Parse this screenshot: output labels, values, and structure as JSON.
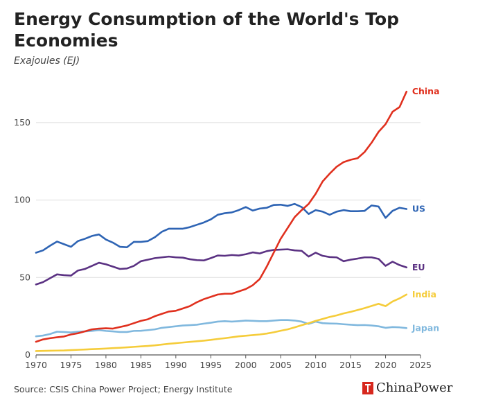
{
  "title": "Energy Consumption of the World's Top Economies",
  "subtitle": "Exajoules (EJ)",
  "source": "Source: CSIS China Power Project; Energy Institute",
  "brand": "ChinaPower",
  "chart_data": {
    "type": "line",
    "title": "Energy Consumption of the World's Top Economies",
    "ylabel": "Exajoules (EJ)",
    "xlim": [
      1970,
      2025
    ],
    "ylim": [
      0,
      175
    ],
    "xticks": [
      1970,
      1975,
      1980,
      1985,
      1990,
      1995,
      2000,
      2005,
      2010,
      2015,
      2020,
      2025
    ],
    "yticks": [
      0,
      50,
      100,
      150
    ],
    "x": [
      1970,
      1971,
      1972,
      1973,
      1974,
      1975,
      1976,
      1977,
      1978,
      1979,
      1980,
      1981,
      1982,
      1983,
      1984,
      1985,
      1986,
      1987,
      1988,
      1989,
      1990,
      1991,
      1992,
      1993,
      1994,
      1995,
      1996,
      1997,
      1998,
      1999,
      2000,
      2001,
      2002,
      2003,
      2004,
      2005,
      2006,
      2007,
      2008,
      2009,
      2010,
      2011,
      2012,
      2013,
      2014,
      2015,
      2016,
      2017,
      2018,
      2019,
      2020,
      2021,
      2022,
      2023
    ],
    "series": [
      {
        "name": "China",
        "color": "#e0301e",
        "values": [
          8.5,
          10.0,
          10.8,
          11.4,
          11.9,
          13.2,
          14.0,
          15.2,
          16.5,
          17.0,
          17.2,
          17.0,
          18.0,
          19.0,
          20.5,
          22.0,
          23.0,
          25.0,
          26.5,
          28.0,
          28.5,
          30.0,
          31.5,
          34.0,
          36.0,
          37.5,
          39.0,
          39.5,
          39.5,
          41.0,
          42.5,
          45.0,
          49.0,
          57.0,
          66.0,
          75.0,
          82.0,
          89.0,
          93.5,
          97.5,
          104.0,
          112.0,
          117.0,
          121.5,
          124.5,
          126.0,
          127.0,
          131.0,
          137.0,
          144.0,
          149.0,
          157.0,
          160.0,
          170.0
        ]
      },
      {
        "name": "US",
        "color": "#2e64b4",
        "values": [
          66.0,
          67.5,
          70.5,
          73.2,
          71.5,
          69.8,
          73.5,
          75.0,
          76.8,
          77.8,
          74.5,
          72.5,
          69.8,
          69.5,
          73.0,
          73.0,
          73.5,
          76.0,
          79.5,
          81.5,
          81.5,
          81.5,
          82.5,
          84.0,
          85.5,
          87.5,
          90.5,
          91.5,
          92.0,
          93.5,
          95.5,
          93.2,
          94.5,
          95.0,
          96.8,
          97.0,
          96.2,
          97.5,
          95.5,
          91.0,
          93.5,
          92.5,
          90.5,
          92.5,
          93.5,
          92.8,
          92.8,
          93.0,
          96.5,
          95.8,
          88.5,
          93.0,
          95.0,
          94.2
        ]
      },
      {
        "name": "EU",
        "color": "#5b3283",
        "values": [
          45.5,
          47.0,
          49.5,
          52.0,
          51.5,
          51.2,
          54.5,
          55.5,
          57.5,
          59.5,
          58.5,
          57.0,
          55.5,
          55.8,
          57.5,
          60.5,
          61.5,
          62.5,
          63.0,
          63.5,
          63.0,
          62.8,
          61.8,
          61.2,
          61.0,
          62.5,
          64.2,
          64.0,
          64.5,
          64.2,
          65.0,
          66.2,
          65.5,
          67.0,
          67.8,
          68.0,
          68.2,
          67.5,
          67.2,
          63.5,
          66.0,
          64.0,
          63.2,
          63.0,
          60.5,
          61.5,
          62.2,
          63.0,
          63.0,
          62.0,
          57.5,
          60.2,
          58.0,
          56.5
        ]
      },
      {
        "name": "India",
        "color": "#f5cc3a",
        "values": [
          2.5,
          2.6,
          2.7,
          2.8,
          2.9,
          3.1,
          3.3,
          3.5,
          3.7,
          3.9,
          4.1,
          4.4,
          4.6,
          4.9,
          5.2,
          5.5,
          5.8,
          6.2,
          6.7,
          7.2,
          7.6,
          8.0,
          8.4,
          8.8,
          9.2,
          9.7,
          10.3,
          10.8,
          11.4,
          12.0,
          12.4,
          12.8,
          13.2,
          13.8,
          14.6,
          15.6,
          16.5,
          17.8,
          19.2,
          20.5,
          22.0,
          23.2,
          24.5,
          25.5,
          26.8,
          27.8,
          29.0,
          30.2,
          31.6,
          33.0,
          31.5,
          34.5,
          36.5,
          39.0
        ]
      },
      {
        "name": "Japan",
        "color": "#80b8de",
        "values": [
          12.0,
          12.5,
          13.5,
          15.0,
          14.8,
          14.5,
          15.0,
          15.2,
          15.5,
          16.0,
          15.5,
          15.2,
          14.8,
          14.8,
          15.5,
          15.6,
          16.0,
          16.5,
          17.5,
          18.0,
          18.5,
          19.0,
          19.2,
          19.5,
          20.2,
          20.8,
          21.5,
          21.8,
          21.5,
          21.8,
          22.2,
          22.0,
          21.8,
          21.8,
          22.2,
          22.5,
          22.5,
          22.2,
          21.5,
          20.0,
          21.5,
          20.5,
          20.3,
          20.2,
          19.8,
          19.5,
          19.2,
          19.3,
          19.0,
          18.5,
          17.5,
          18.0,
          17.8,
          17.3
        ]
      }
    ]
  }
}
